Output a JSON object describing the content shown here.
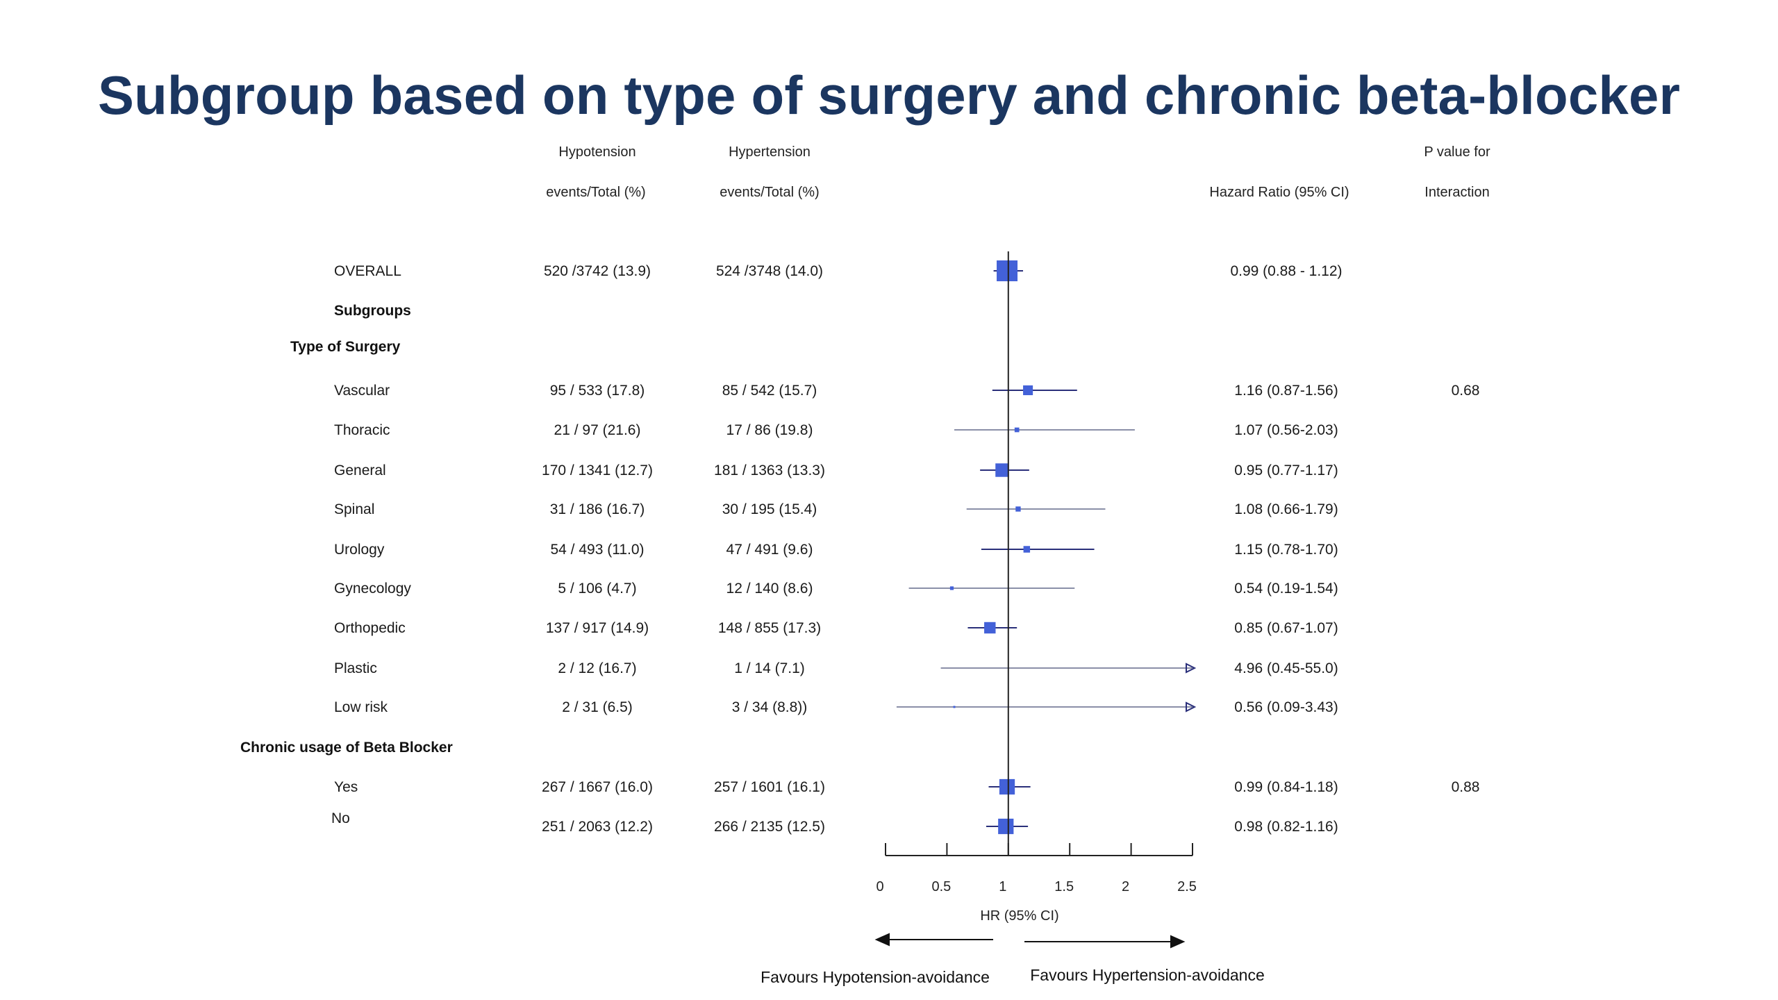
{
  "title": "Subgroup based on type of surgery and chronic beta-blocker",
  "headers": {
    "hypo_line1": "Hypotension",
    "hypo_line2": "events/Total  (%)",
    "hyper_line1": "Hypertension",
    "hyper_line2": "events/Total  (%)",
    "hr": "Hazard Ratio (95% CI)",
    "p_line1": "P value  for",
    "p_line2": "Interaction"
  },
  "section_labels": {
    "subgroups": "Subgroups",
    "type_of_surgery": "Type of Surgery",
    "beta_blocker": "Chronic usage of  Beta Blocker"
  },
  "footer": {
    "favours_left": "Favours Hypotension-avoidance",
    "favours_right": "Favours Hypertension-avoidance"
  },
  "chart_data": {
    "type": "forest",
    "xlabel": "HR (95% CI)",
    "xlim": [
      0,
      2.5
    ],
    "xticks": [
      0,
      0.5,
      1,
      1.5,
      2,
      2.5
    ],
    "reference_line": 1,
    "marker_color": "#4361d8",
    "ci_color": "#2a2f7a",
    "rows": [
      {
        "id": "overall",
        "label": "OVERALL",
        "hypo": "520 /3742 (13.9)",
        "hyper": "524 /3748 (14.0)",
        "hr_text": "0.99 (0.88 - 1.12)",
        "p": "",
        "hr": 0.99,
        "lo": 0.88,
        "hi": 1.12,
        "weight": 1.0
      },
      {
        "id": "vascular",
        "label": "Vascular",
        "hypo": "95 / 533 (17.8)",
        "hyper": "85 / 542 (15.7)",
        "hr_text": "1.16 (0.87-1.56)",
        "p": "0.68",
        "hr": 1.16,
        "lo": 0.87,
        "hi": 1.56,
        "weight": 0.22
      },
      {
        "id": "thoracic",
        "label": "Thoracic",
        "hypo": "21 / 97 (21.6)",
        "hyper": "17 / 86 (19.8)",
        "hr_text": "1.07 (0.56-2.03)",
        "p": "",
        "hr": 1.07,
        "lo": 0.56,
        "hi": 2.03,
        "weight": 0.05
      },
      {
        "id": "general",
        "label": "General",
        "hypo": "170 / 1341 (12.7)",
        "hyper": "181 / 1363 (13.3)",
        "hr_text": "0.95 (0.77-1.17)",
        "p": "",
        "hr": 0.95,
        "lo": 0.77,
        "hi": 1.17,
        "weight": 0.42
      },
      {
        "id": "spinal",
        "label": "Spinal",
        "hypo": "31 / 186 (16.7)",
        "hyper": "30 / 195 (15.4)",
        "hr_text": "1.08 (0.66-1.79)",
        "p": "",
        "hr": 1.08,
        "lo": 0.66,
        "hi": 1.79,
        "weight": 0.06
      },
      {
        "id": "urology",
        "label": "Urology",
        "hypo": "54 / 493 (11.0)",
        "hyper": "47 / 491 (9.6)",
        "hr_text": "1.15 (0.78-1.70)",
        "p": "",
        "hr": 1.15,
        "lo": 0.78,
        "hi": 1.7,
        "weight": 0.1
      },
      {
        "id": "gynecology",
        "label": "Gynecology",
        "hypo": "5 / 106 (4.7)",
        "hyper": "12 / 140 (8.6)",
        "hr_text": "0.54 (0.19-1.54)",
        "p": "",
        "hr": 0.54,
        "lo": 0.19,
        "hi": 1.54,
        "weight": 0.03
      },
      {
        "id": "orthopedic",
        "label": "Orthopedic",
        "hypo": "137 / 917 (14.9)",
        "hyper": "148 / 855 (17.3)",
        "hr_text": "0.85 (0.67-1.07)",
        "p": "",
        "hr": 0.85,
        "lo": 0.67,
        "hi": 1.07,
        "weight": 0.3
      },
      {
        "id": "plastic",
        "label": "Plastic",
        "hypo": "2 / 12 (16.7)",
        "hyper": "1 / 14 (7.1)",
        "hr_text": "4.96 (0.45-55.0)",
        "p": "",
        "hr": 4.96,
        "lo": 0.45,
        "hi": 55.0,
        "weight": 0.0
      },
      {
        "id": "low_risk",
        "label": "Low risk",
        "hypo": "2 / 31 (6.5)",
        "hyper": "3 / 34 (8.8))",
        "hr_text": "0.56 (0.09-3.43)",
        "p": "",
        "hr": 0.56,
        "lo": 0.09,
        "hi": 3.43,
        "weight": 0.0
      },
      {
        "id": "bb_yes",
        "label": "Yes",
        "hypo": "267 / 1667 (16.0)",
        "hyper": "257 / 1601 (16.1)",
        "hr_text": "0.99 (0.84-1.18)",
        "p": "0.88",
        "hr": 0.99,
        "lo": 0.84,
        "hi": 1.18,
        "weight": 0.55
      },
      {
        "id": "bb_no",
        "label": "No",
        "hypo": "251 / 2063 (12.2)",
        "hyper": "266 / 2135 (12.5)",
        "hr_text": "0.98 (0.82-1.16)",
        "p": "",
        "hr": 0.98,
        "lo": 0.82,
        "hi": 1.16,
        "weight": 0.55
      }
    ]
  }
}
